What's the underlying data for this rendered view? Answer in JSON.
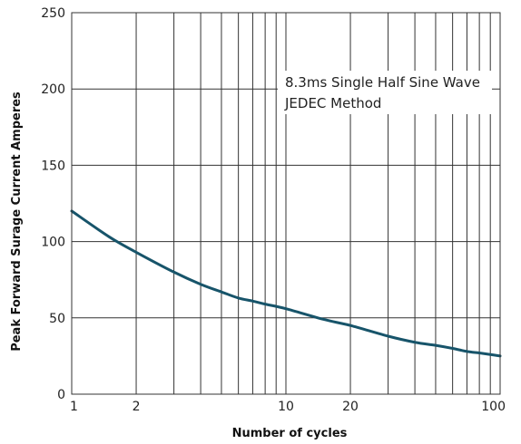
{
  "chart_data": {
    "type": "line",
    "title": "",
    "xlabel": "Number of cycles",
    "ylabel": "Peak Forward Surage Current Amperes",
    "x_scale": "log",
    "xlim": [
      1,
      100
    ],
    "ylim": [
      0,
      250
    ],
    "x_ticks": [
      1,
      2,
      10,
      20,
      100
    ],
    "x_tick_labels": [
      "1",
      "2",
      "10",
      "20",
      "100"
    ],
    "x_grid": [
      1,
      2,
      3,
      4,
      5,
      6,
      7,
      8,
      9,
      10,
      20,
      30,
      40,
      50,
      60,
      70,
      80,
      90,
      100
    ],
    "y_ticks": [
      0,
      50,
      100,
      150,
      200,
      250
    ],
    "y_tick_labels": [
      "0",
      "50",
      "100",
      "150",
      "200",
      "250"
    ],
    "grid": true,
    "annotation": {
      "lines": [
        "8.3ms Single Half Sine Wave",
        "JEDEC Method"
      ]
    },
    "series": [
      {
        "color": "#17546a",
        "x": [
          1,
          1.5,
          2,
          3,
          4,
          5,
          6,
          7,
          8,
          10,
          15,
          20,
          30,
          40,
          50,
          60,
          70,
          80,
          90,
          100
        ],
        "values": [
          120,
          103,
          93,
          80,
          72,
          67,
          63,
          61,
          59,
          56,
          49,
          45,
          38,
          34,
          32,
          30,
          28,
          27,
          26,
          25
        ]
      }
    ]
  }
}
